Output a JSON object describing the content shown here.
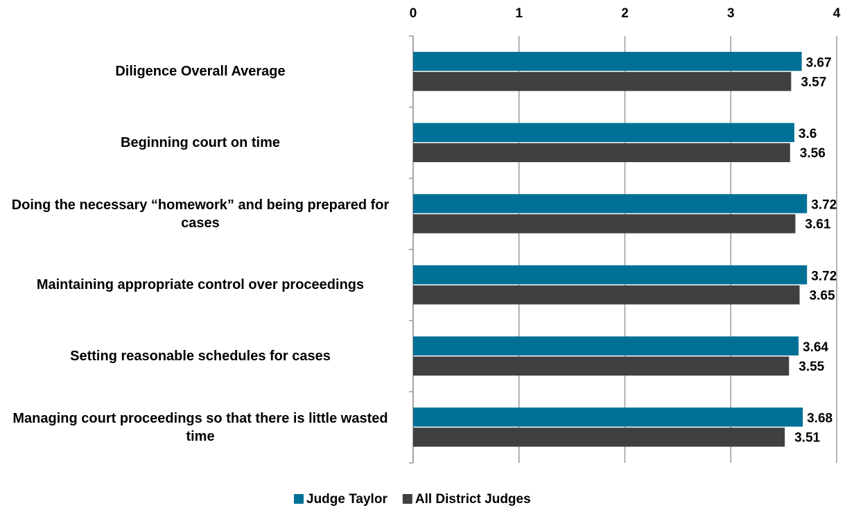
{
  "chart_data": {
    "type": "bar",
    "orientation": "horizontal",
    "categories": [
      "Diligence Overall Average",
      "Beginning court on time",
      "Doing the necessary “homework” and being prepared for cases",
      "Maintaining appropriate control over proceedings",
      "Setting reasonable schedules for cases",
      "Managing court proceedings so that there is little wasted time"
    ],
    "series": [
      {
        "name": "Judge Taylor",
        "color": "#007096",
        "values": [
          3.67,
          3.6,
          3.72,
          3.72,
          3.64,
          3.68
        ]
      },
      {
        "name": "All District Judges",
        "color": "#404040",
        "values": [
          3.57,
          3.56,
          3.61,
          3.65,
          3.55,
          3.51
        ]
      }
    ],
    "xlim": [
      0,
      4
    ],
    "xticks": [
      0,
      1,
      2,
      3,
      4
    ],
    "grid": true,
    "legend": "bottom"
  }
}
